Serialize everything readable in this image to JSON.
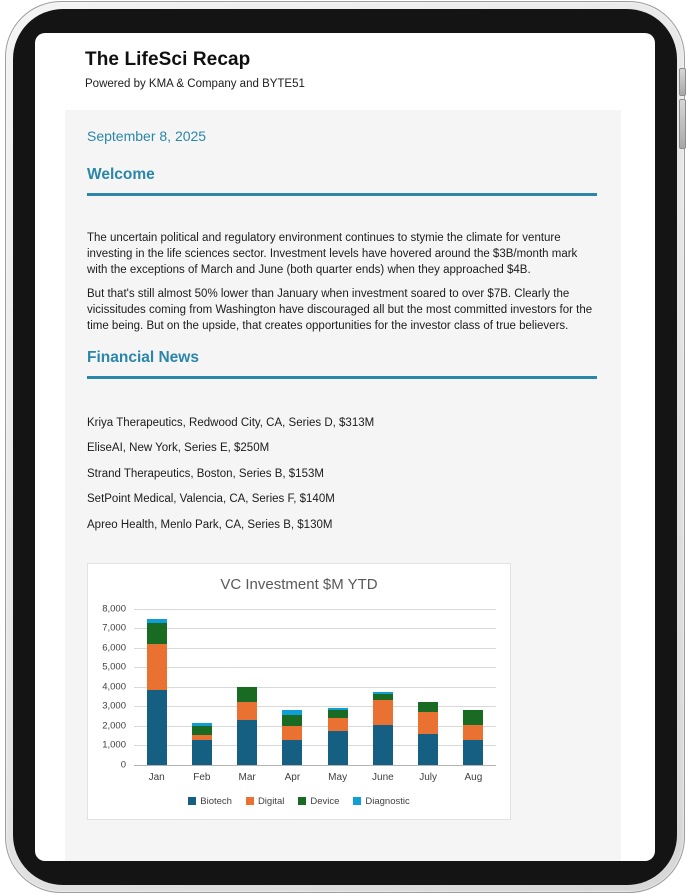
{
  "header": {
    "title": "The LifeSci Recap",
    "subtitle": "Powered by KMA & Company and BYTE51"
  },
  "newsletter": {
    "date": "September 8, 2025",
    "sections": {
      "welcome": {
        "heading": "Welcome",
        "paragraphs": [
          "The uncertain political and regulatory environment continues to stymie the climate for venture investing in the life sciences sector. Investment levels have hovered around the $3B/month mark with the exceptions of March and June (both quarter ends) when they approached $4B.",
          "But that's still almost 50% lower than January when investment soared to over $7B. Clearly the vicissitudes coming from Washington have discouraged all but the most committed investors for the time being. But on the upside, that creates opportunities for the investor class of true believers."
        ]
      },
      "financial_news": {
        "heading": "Financial News",
        "items": [
          "Kriya Therapeutics, Redwood City, CA, Series D, $313M",
          "EliseAI, New York, Series E, $250M",
          "Strand Therapeutics, Boston, Series B, $153M",
          "SetPoint Medical, Valencia, CA, Series F, $140M",
          "Apreo Health, Menlo Park, CA, Series B, $130M"
        ]
      }
    }
  },
  "colors": {
    "accent_teal": "#2b86a9",
    "biotech": "#156082",
    "digital": "#e97132",
    "device": "#196b24",
    "diagnostic": "#0f9ed5"
  },
  "chart_data": {
    "type": "bar",
    "stacked": true,
    "title": "VC Investment $M YTD",
    "categories": [
      "Jan",
      "Feb",
      "Mar",
      "Apr",
      "May",
      "June",
      "July",
      "Aug"
    ],
    "series": [
      {
        "name": "Biotech",
        "color": "#156082",
        "values": [
          3800,
          1250,
          2300,
          1250,
          1700,
          2050,
          1550,
          1250
        ]
      },
      {
        "name": "Digital",
        "color": "#e97132",
        "values": [
          2400,
          250,
          900,
          750,
          700,
          1250,
          1150,
          800
        ]
      },
      {
        "name": "Device",
        "color": "#196b24",
        "values": [
          1050,
          500,
          800,
          550,
          400,
          300,
          500,
          750
        ]
      },
      {
        "name": "Diagnostic",
        "color": "#0f9ed5",
        "values": [
          200,
          150,
          0,
          250,
          100,
          100,
          0,
          0
        ]
      }
    ],
    "totals": [
      7450,
      2150,
      4000,
      2800,
      2900,
      3700,
      3200,
      2800
    ],
    "xlabel": "",
    "ylabel": "",
    "ylim": [
      0,
      8000
    ],
    "ytick_interval": 1000,
    "grid": true,
    "legend_position": "bottom"
  }
}
